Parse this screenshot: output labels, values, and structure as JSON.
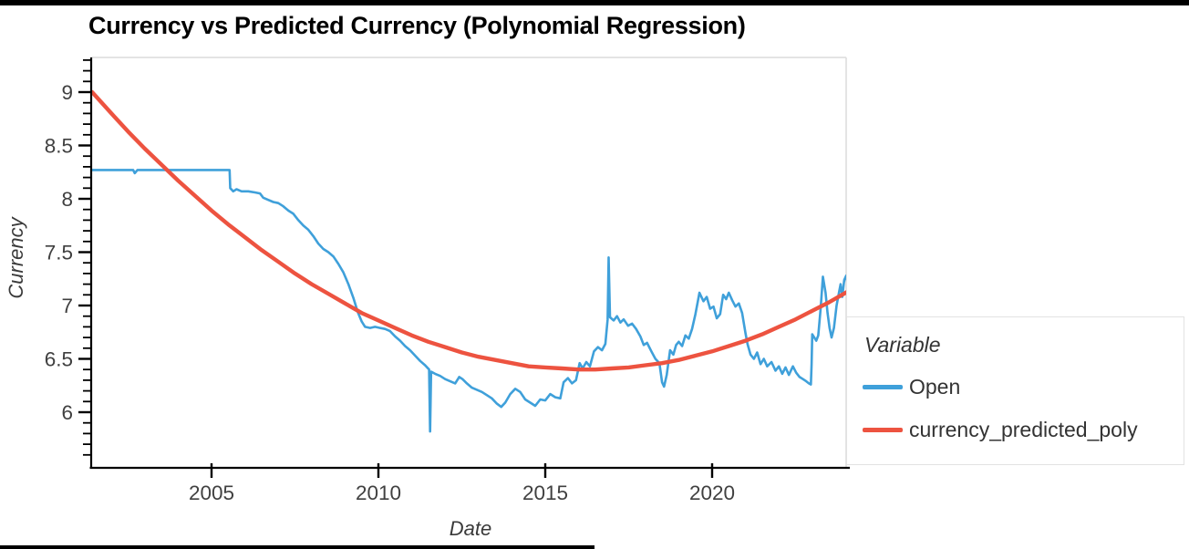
{
  "title": "Currency vs Predicted Currency (Polynomial Regression)",
  "chart_data": {
    "type": "line",
    "title": "Currency vs Predicted Currency (Polynomial Regression)",
    "xlabel": "Date",
    "ylabel": "Currency",
    "x_range": [
      2001.42,
      2024.07
    ],
    "y_range": [
      5.48,
      9.32
    ],
    "x_ticks": [
      2005,
      2010,
      2015,
      2020
    ],
    "y_ticks": [
      9,
      8.5,
      8,
      7.5,
      7,
      6.5,
      6
    ],
    "y_minor_tick_step": 0.1,
    "grid": false,
    "axis_color": "#000000",
    "panel_border_color": "#dcdcdc",
    "tick_label_color": "#404040",
    "legend": {
      "title": "Variable",
      "position": "right",
      "entries": [
        {
          "label": "Open",
          "color": "#3fa0da"
        },
        {
          "label": "currency_predicted_poly",
          "color": "#ed5340"
        }
      ]
    },
    "series": [
      {
        "name": "Open",
        "color": "#3fa0da",
        "width": 2.6,
        "points": [
          [
            2001.42,
            8.27
          ],
          [
            2002.2,
            8.27
          ],
          [
            2002.65,
            8.27
          ],
          [
            2002.7,
            8.24
          ],
          [
            2002.78,
            8.27
          ],
          [
            2003.6,
            8.27
          ],
          [
            2004.4,
            8.27
          ],
          [
            2005.1,
            8.27
          ],
          [
            2005.54,
            8.27
          ],
          [
            2005.56,
            8.1
          ],
          [
            2005.65,
            8.07
          ],
          [
            2005.75,
            8.09
          ],
          [
            2005.9,
            8.07
          ],
          [
            2006.1,
            8.07
          ],
          [
            2006.3,
            8.06
          ],
          [
            2006.45,
            8.05
          ],
          [
            2006.55,
            8.01
          ],
          [
            2006.7,
            7.99
          ],
          [
            2006.85,
            7.97
          ],
          [
            2007.0,
            7.96
          ],
          [
            2007.15,
            7.93
          ],
          [
            2007.3,
            7.89
          ],
          [
            2007.45,
            7.86
          ],
          [
            2007.6,
            7.8
          ],
          [
            2007.75,
            7.75
          ],
          [
            2007.9,
            7.71
          ],
          [
            2008.05,
            7.65
          ],
          [
            2008.2,
            7.58
          ],
          [
            2008.35,
            7.53
          ],
          [
            2008.5,
            7.5
          ],
          [
            2008.65,
            7.46
          ],
          [
            2008.8,
            7.39
          ],
          [
            2008.95,
            7.31
          ],
          [
            2009.1,
            7.2
          ],
          [
            2009.25,
            7.07
          ],
          [
            2009.38,
            6.94
          ],
          [
            2009.5,
            6.85
          ],
          [
            2009.6,
            6.8
          ],
          [
            2009.75,
            6.79
          ],
          [
            2009.9,
            6.8
          ],
          [
            2010.05,
            6.79
          ],
          [
            2010.2,
            6.78
          ],
          [
            2010.35,
            6.76
          ],
          [
            2010.5,
            6.71
          ],
          [
            2010.65,
            6.67
          ],
          [
            2010.8,
            6.62
          ],
          [
            2010.95,
            6.58
          ],
          [
            2011.1,
            6.53
          ],
          [
            2011.25,
            6.48
          ],
          [
            2011.4,
            6.44
          ],
          [
            2011.52,
            6.4
          ],
          [
            2011.55,
            5.82
          ],
          [
            2011.58,
            6.38
          ],
          [
            2011.7,
            6.36
          ],
          [
            2011.85,
            6.34
          ],
          [
            2012.0,
            6.31
          ],
          [
            2012.15,
            6.29
          ],
          [
            2012.3,
            6.27
          ],
          [
            2012.42,
            6.33
          ],
          [
            2012.52,
            6.31
          ],
          [
            2012.65,
            6.27
          ],
          [
            2012.8,
            6.23
          ],
          [
            2012.95,
            6.21
          ],
          [
            2013.1,
            6.19
          ],
          [
            2013.25,
            6.16
          ],
          [
            2013.4,
            6.13
          ],
          [
            2013.55,
            6.08
          ],
          [
            2013.68,
            6.05
          ],
          [
            2013.8,
            6.09
          ],
          [
            2013.95,
            6.17
          ],
          [
            2014.1,
            6.22
          ],
          [
            2014.25,
            6.19
          ],
          [
            2014.4,
            6.12
          ],
          [
            2014.55,
            6.09
          ],
          [
            2014.7,
            6.06
          ],
          [
            2014.85,
            6.12
          ],
          [
            2015.0,
            6.11
          ],
          [
            2015.15,
            6.17
          ],
          [
            2015.3,
            6.14
          ],
          [
            2015.45,
            6.13
          ],
          [
            2015.55,
            6.28
          ],
          [
            2015.68,
            6.32
          ],
          [
            2015.8,
            6.27
          ],
          [
            2015.92,
            6.3
          ],
          [
            2016.03,
            6.46
          ],
          [
            2016.12,
            6.41
          ],
          [
            2016.23,
            6.47
          ],
          [
            2016.34,
            6.43
          ],
          [
            2016.46,
            6.57
          ],
          [
            2016.58,
            6.61
          ],
          [
            2016.7,
            6.58
          ],
          [
            2016.8,
            6.64
          ],
          [
            2016.87,
            6.87
          ],
          [
            2016.9,
            7.45
          ],
          [
            2016.94,
            6.89
          ],
          [
            2017.05,
            6.86
          ],
          [
            2017.15,
            6.9
          ],
          [
            2017.25,
            6.84
          ],
          [
            2017.35,
            6.87
          ],
          [
            2017.48,
            6.81
          ],
          [
            2017.6,
            6.83
          ],
          [
            2017.72,
            6.78
          ],
          [
            2017.85,
            6.71
          ],
          [
            2017.95,
            6.63
          ],
          [
            2018.05,
            6.65
          ],
          [
            2018.18,
            6.57
          ],
          [
            2018.3,
            6.5
          ],
          [
            2018.42,
            6.46
          ],
          [
            2018.5,
            6.28
          ],
          [
            2018.56,
            6.24
          ],
          [
            2018.64,
            6.35
          ],
          [
            2018.74,
            6.58
          ],
          [
            2018.84,
            6.54
          ],
          [
            2018.92,
            6.63
          ],
          [
            2019.0,
            6.66
          ],
          [
            2019.1,
            6.62
          ],
          [
            2019.2,
            6.72
          ],
          [
            2019.3,
            6.69
          ],
          [
            2019.4,
            6.78
          ],
          [
            2019.5,
            6.92
          ],
          [
            2019.62,
            7.12
          ],
          [
            2019.74,
            7.04
          ],
          [
            2019.84,
            7.08
          ],
          [
            2019.94,
            6.97
          ],
          [
            2020.04,
            6.99
          ],
          [
            2020.14,
            6.88
          ],
          [
            2020.24,
            6.92
          ],
          [
            2020.33,
            7.1
          ],
          [
            2020.42,
            7.06
          ],
          [
            2020.5,
            7.12
          ],
          [
            2020.6,
            7.05
          ],
          [
            2020.7,
            6.99
          ],
          [
            2020.8,
            7.02
          ],
          [
            2020.9,
            6.93
          ],
          [
            2021.0,
            6.74
          ],
          [
            2021.06,
            6.64
          ],
          [
            2021.15,
            6.54
          ],
          [
            2021.25,
            6.5
          ],
          [
            2021.35,
            6.56
          ],
          [
            2021.45,
            6.45
          ],
          [
            2021.55,
            6.5
          ],
          [
            2021.65,
            6.43
          ],
          [
            2021.78,
            6.47
          ],
          [
            2021.9,
            6.39
          ],
          [
            2022.0,
            6.43
          ],
          [
            2022.1,
            6.36
          ],
          [
            2022.2,
            6.42
          ],
          [
            2022.3,
            6.35
          ],
          [
            2022.42,
            6.43
          ],
          [
            2022.52,
            6.37
          ],
          [
            2022.62,
            6.33
          ],
          [
            2022.72,
            6.31
          ],
          [
            2022.82,
            6.29
          ],
          [
            2022.9,
            6.27
          ],
          [
            2022.96,
            6.26
          ],
          [
            2022.98,
            6.45
          ],
          [
            2023.0,
            6.73
          ],
          [
            2023.06,
            6.7
          ],
          [
            2023.12,
            6.67
          ],
          [
            2023.18,
            6.72
          ],
          [
            2023.25,
            6.97
          ],
          [
            2023.32,
            7.27
          ],
          [
            2023.4,
            7.12
          ],
          [
            2023.46,
            6.93
          ],
          [
            2023.52,
            6.79
          ],
          [
            2023.58,
            6.7
          ],
          [
            2023.65,
            6.79
          ],
          [
            2023.73,
            7.0
          ],
          [
            2023.8,
            7.12
          ],
          [
            2023.85,
            7.2
          ],
          [
            2023.9,
            7.08
          ],
          [
            2023.96,
            7.24
          ],
          [
            2024.02,
            7.28
          ],
          [
            2024.06,
            7.2
          ]
        ]
      },
      {
        "name": "currency_predicted_poly",
        "color": "#ed5340",
        "width": 4.4,
        "points": [
          [
            2001.42,
            9.0
          ],
          [
            2002.0,
            8.8
          ],
          [
            2002.5,
            8.63
          ],
          [
            2003.0,
            8.47
          ],
          [
            2003.5,
            8.32
          ],
          [
            2004.0,
            8.17
          ],
          [
            2004.5,
            8.03
          ],
          [
            2005.0,
            7.89
          ],
          [
            2005.5,
            7.76
          ],
          [
            2006.0,
            7.64
          ],
          [
            2006.5,
            7.52
          ],
          [
            2007.0,
            7.41
          ],
          [
            2007.5,
            7.3
          ],
          [
            2008.0,
            7.2
          ],
          [
            2008.5,
            7.11
          ],
          [
            2009.0,
            7.02
          ],
          [
            2009.5,
            6.93
          ],
          [
            2010.0,
            6.86
          ],
          [
            2010.5,
            6.79
          ],
          [
            2011.0,
            6.72
          ],
          [
            2011.5,
            6.66
          ],
          [
            2012.0,
            6.61
          ],
          [
            2012.5,
            6.56
          ],
          [
            2013.0,
            6.52
          ],
          [
            2013.5,
            6.49
          ],
          [
            2014.0,
            6.46
          ],
          [
            2014.5,
            6.43
          ],
          [
            2015.0,
            6.42
          ],
          [
            2015.5,
            6.41
          ],
          [
            2016.0,
            6.4
          ],
          [
            2016.5,
            6.4
          ],
          [
            2017.0,
            6.41
          ],
          [
            2017.5,
            6.42
          ],
          [
            2018.0,
            6.44
          ],
          [
            2018.5,
            6.46
          ],
          [
            2019.0,
            6.49
          ],
          [
            2019.5,
            6.53
          ],
          [
            2020.0,
            6.57
          ],
          [
            2020.5,
            6.62
          ],
          [
            2021.0,
            6.67
          ],
          [
            2021.5,
            6.73
          ],
          [
            2022.0,
            6.8
          ],
          [
            2022.5,
            6.87
          ],
          [
            2023.0,
            6.95
          ],
          [
            2023.5,
            7.03
          ],
          [
            2024.06,
            7.13
          ]
        ]
      }
    ]
  }
}
